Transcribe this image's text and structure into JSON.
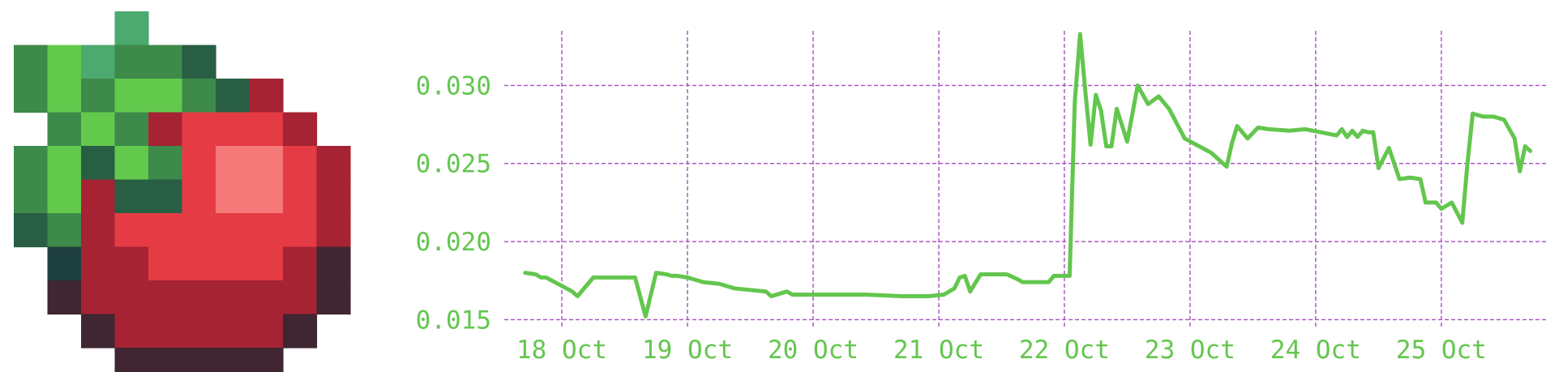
{
  "icon": {
    "name": "apple-icon",
    "palette": {
      "G1": "#4ca96f",
      "G2": "#3d8a4a",
      "G3": "#63c94d",
      "G4": "#275e44",
      "T1": "#1e3f3f",
      "R1": "#a52333",
      "R2": "#e53b45",
      "R3": "#f57979",
      "D1": "#3f2632"
    },
    "pixels": [
      "...G1.......",
      "G2G3G1G2G2G4....",
      "G2G3G2G3G3G2G4R1...",
      ".G2G3G2R1R2R2R2R1..",
      "G2G3G4G3G2R2R3R3R2R1.",
      "G2G3R1G4G4R2R3R3R2R1.",
      "G4G2R1R2R2R2R2R2R2R1.",
      ".T1R1R1R2R2R2R2R1D1.",
      ".D1R1R1R1R1R1R1R1D1.",
      "..D1R1R1R1R1R1D1..",
      "...D1D1D1D1D1..."
    ]
  },
  "chart_data": {
    "type": "line",
    "title": "",
    "xlabel": "",
    "ylabel": "",
    "x_ticks": [
      "18 Oct",
      "19 Oct",
      "20 Oct",
      "21 Oct",
      "22 Oct",
      "23 Oct",
      "24 Oct",
      "25 Oct"
    ],
    "y_ticks": [
      "0.015",
      "0.020",
      "0.025",
      "0.030"
    ],
    "xlim": [
      "2020-10-17T13:00",
      "2020-10-25T20:00"
    ],
    "ylim": [
      0.0145,
      0.0335
    ],
    "grid": true,
    "legend": "none",
    "colors": {
      "line": "#63c64e",
      "grid": "#a64fbf",
      "labels": "#63c64e"
    },
    "series": [
      {
        "x": [
          "2020-10-17T17:00",
          "2020-10-17T19:00",
          "2020-10-17T20:00",
          "2020-10-17T21:00",
          "2020-10-18T02:00",
          "2020-10-18T03:00",
          "2020-10-18T06:00",
          "2020-10-18T07:00",
          "2020-10-18T09:00",
          "2020-10-18T11:00",
          "2020-10-18T14:00",
          "2020-10-18T16:00",
          "2020-10-18T18:00",
          "2020-10-18T20:00",
          "2020-10-18T21:00",
          "2020-10-18T22:00",
          "2020-10-19T00:00",
          "2020-10-19T03:00",
          "2020-10-19T06:00",
          "2020-10-19T09:00",
          "2020-10-19T12:00",
          "2020-10-19T15:00",
          "2020-10-19T16:00",
          "2020-10-19T19:00",
          "2020-10-19T20:00",
          "2020-10-19T21:00",
          "2020-10-19T22:00",
          "2020-10-20T04:00",
          "2020-10-20T10:00",
          "2020-10-20T17:00",
          "2020-10-20T18:00",
          "2020-10-20T20:00",
          "2020-10-20T22:00",
          "2020-10-21T01:00",
          "2020-10-21T03:00",
          "2020-10-21T04:00",
          "2020-10-21T05:00",
          "2020-10-21T06:00",
          "2020-10-21T08:00",
          "2020-10-21T09:00",
          "2020-10-21T13:00",
          "2020-10-21T15:00",
          "2020-10-21T16:00",
          "2020-10-21T17:00",
          "2020-10-21T21:00",
          "2020-10-21T22:00",
          "2020-10-22T00:00",
          "2020-10-22T01:00",
          "2020-10-22T02:00",
          "2020-10-22T03:00",
          "2020-10-22T04:00",
          "2020-10-22T05:00",
          "2020-10-22T06:00",
          "2020-10-22T07:00",
          "2020-10-22T08:00",
          "2020-10-22T09:00",
          "2020-10-22T10:00",
          "2020-10-22T12:00",
          "2020-10-22T14:00",
          "2020-10-22T16:00",
          "2020-10-22T18:00",
          "2020-10-22T20:00",
          "2020-10-22T23:00",
          "2020-10-23T04:00",
          "2020-10-23T07:00",
          "2020-10-23T08:00",
          "2020-10-23T09:00",
          "2020-10-23T11:00",
          "2020-10-23T13:00",
          "2020-10-23T15:00",
          "2020-10-23T19:00",
          "2020-10-23T22:00",
          "2020-10-24T04:00",
          "2020-10-24T05:00",
          "2020-10-24T06:00",
          "2020-10-24T07:00",
          "2020-10-24T08:00",
          "2020-10-24T09:00",
          "2020-10-24T10:00",
          "2020-10-24T11:00",
          "2020-10-24T12:00",
          "2020-10-24T14:00",
          "2020-10-24T16:00",
          "2020-10-24T18:00",
          "2020-10-24T20:00",
          "2020-10-24T21:00",
          "2020-10-24T23:00",
          "2020-10-25T00:00",
          "2020-10-25T02:00",
          "2020-10-25T04:00",
          "2020-10-25T05:00",
          "2020-10-25T06:00",
          "2020-10-25T08:00",
          "2020-10-25T10:00",
          "2020-10-25T12:00",
          "2020-10-25T14:00",
          "2020-10-25T15:00",
          "2020-10-25T16:00",
          "2020-10-25T17:00"
        ],
        "y": [
          0.018,
          0.0179,
          0.0177,
          0.0177,
          0.0168,
          0.0165,
          0.0177,
          0.0177,
          0.0177,
          0.0177,
          0.0177,
          0.0152,
          0.018,
          0.0179,
          0.0178,
          0.0178,
          0.0177,
          0.0174,
          0.0173,
          0.017,
          0.0169,
          0.0168,
          0.0165,
          0.0168,
          0.0166,
          0.0166,
          0.0166,
          0.0166,
          0.0166,
          0.0165,
          0.0165,
          0.0165,
          0.0165,
          0.0166,
          0.017,
          0.0177,
          0.0178,
          0.0168,
          0.0179,
          0.0179,
          0.0179,
          0.0176,
          0.0174,
          0.0174,
          0.0174,
          0.0178,
          0.0178,
          0.0178,
          0.029,
          0.0333,
          0.0296,
          0.0262,
          0.0294,
          0.0284,
          0.0261,
          0.0261,
          0.0285,
          0.0264,
          0.03,
          0.0288,
          0.0293,
          0.0285,
          0.0266,
          0.0257,
          0.0248,
          0.0263,
          0.0274,
          0.0266,
          0.0273,
          0.0272,
          0.0271,
          0.0272,
          0.0268,
          0.0272,
          0.0267,
          0.0271,
          0.0267,
          0.0271,
          0.027,
          0.027,
          0.0247,
          0.026,
          0.024,
          0.0241,
          0.024,
          0.0225,
          0.0225,
          0.0221,
          0.0225,
          0.0212,
          0.025,
          0.0282,
          0.028,
          0.028,
          0.0278,
          0.0266,
          0.0245,
          0.0261,
          0.0258
        ]
      }
    ]
  }
}
